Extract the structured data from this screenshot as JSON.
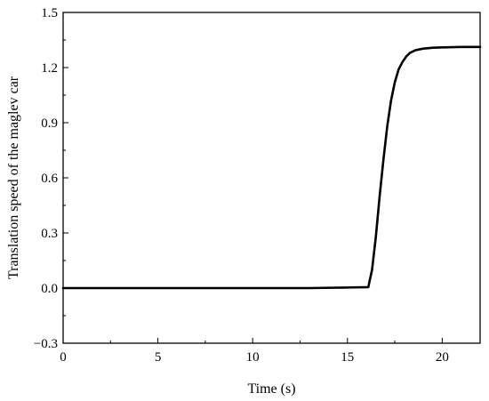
{
  "chart_data": {
    "type": "line",
    "title": "",
    "xlabel": "Time (s)",
    "ylabel": "Translation speed of the maglev car",
    "xlim": [
      0,
      22
    ],
    "ylim": [
      -0.3,
      1.5
    ],
    "grid": false,
    "legend": "none",
    "x_ticks": [
      0,
      5,
      10,
      15,
      20
    ],
    "y_ticks": [
      -0.3,
      0.0,
      0.3,
      0.6,
      0.9,
      1.2,
      1.5
    ],
    "x_tick_labels": [
      "0",
      "5",
      "10",
      "15",
      "20"
    ],
    "y_tick_labels": [
      "−0.3",
      "0.0",
      "0.3",
      "0.6",
      "0.9",
      "1.2",
      "1.5"
    ],
    "series": [
      {
        "color": "#000000",
        "x": [
          0,
          5,
          10,
          13,
          15,
          16.1,
          16.3,
          16.5,
          16.7,
          16.9,
          17.1,
          17.3,
          17.5,
          17.7,
          17.9,
          18.1,
          18.3,
          18.6,
          19.0,
          19.5,
          20.0,
          21.0,
          22.0
        ],
        "y": [
          0.0,
          0.0,
          0.0,
          0.0,
          0.003,
          0.005,
          0.1,
          0.28,
          0.5,
          0.7,
          0.88,
          1.02,
          1.12,
          1.19,
          1.23,
          1.26,
          1.28,
          1.295,
          1.303,
          1.308,
          1.31,
          1.312,
          1.312
        ]
      }
    ]
  }
}
